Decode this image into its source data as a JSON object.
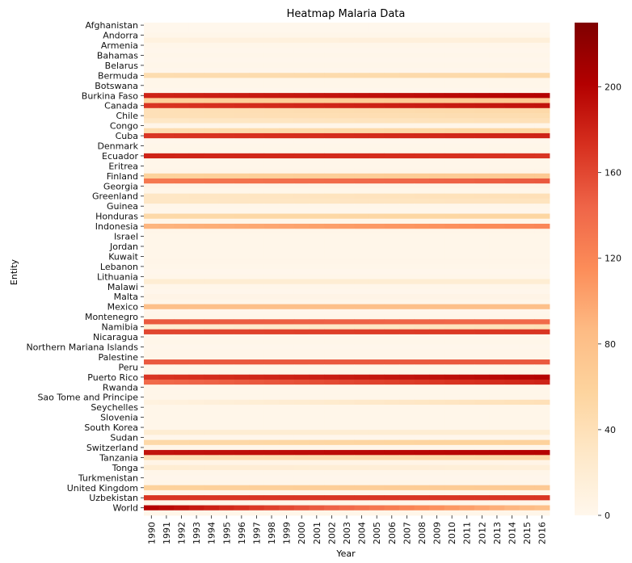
{
  "chart_data": {
    "type": "heatmap",
    "title": "Heatmap Malaria Data",
    "xlabel": "Year",
    "ylabel": "Entity",
    "x": [
      "1990",
      "1991",
      "1992",
      "1993",
      "1994",
      "1995",
      "1996",
      "1997",
      "1998",
      "1999",
      "2000",
      "2001",
      "2002",
      "2003",
      "2004",
      "2005",
      "2006",
      "2007",
      "2008",
      "2009",
      "2010",
      "2011",
      "2012",
      "2013",
      "2014",
      "2015",
      "2016"
    ],
    "y_tick_labels": [
      "Afghanistan",
      "Andorra",
      "Armenia",
      "Bahamas",
      "Belarus",
      "Bermuda",
      "Botswana",
      "Burkina Faso",
      "Canada",
      "Chile",
      "Congo",
      "Cuba",
      "Denmark",
      "Ecuador",
      "Eritrea",
      "Finland",
      "Georgia",
      "Greenland",
      "Guinea",
      "Honduras",
      "Indonesia",
      "Israel",
      "Jordan",
      "Kuwait",
      "Lebanon",
      "Lithuania",
      "Malawi",
      "Malta",
      "Mexico",
      "Montenegro",
      "Namibia",
      "Nicaragua",
      "Northern Mariana Islands",
      "Palestine",
      "Peru",
      "Puerto Rico",
      "Rwanda",
      "Sao Tome and Principe",
      "Seychelles",
      "Slovenia",
      "South Korea",
      "Sudan",
      "Switzerland",
      "Tanzania",
      "Tonga",
      "Turkmenistan",
      "United Kingdom",
      "Uzbekistan",
      "World"
    ],
    "row_count": 98,
    "colorbar": {
      "ticks": [
        0,
        40,
        80,
        120,
        160,
        200
      ],
      "vmin": 0,
      "vmax": 230,
      "colormap": "OrRd"
    },
    "row_profiles": [
      [
        0,
        0
      ],
      [
        0,
        0
      ],
      [
        2,
        2
      ],
      [
        10,
        15
      ],
      [
        2,
        2
      ],
      [
        1,
        1
      ],
      [
        2,
        2
      ],
      [
        1,
        1
      ],
      [
        2,
        2
      ],
      [
        1,
        1
      ],
      [
        45,
        50
      ],
      [
        2,
        2
      ],
      [
        2,
        2
      ],
      [
        1,
        1
      ],
      [
        180,
        200
      ],
      [
        60,
        70
      ],
      [
        170,
        190
      ],
      [
        40,
        50
      ],
      [
        40,
        45
      ],
      [
        30,
        40
      ],
      [
        3,
        3
      ],
      [
        45,
        55
      ],
      [
        170,
        180
      ],
      [
        1,
        1
      ],
      [
        2,
        2
      ],
      [
        2,
        2
      ],
      [
        180,
        170
      ],
      [
        2,
        2
      ],
      [
        2,
        2
      ],
      [
        3,
        3
      ],
      [
        60,
        70
      ],
      [
        130,
        150
      ],
      [
        5,
        5
      ],
      [
        2,
        2
      ],
      [
        30,
        40
      ],
      [
        30,
        35
      ],
      [
        2,
        2
      ],
      [
        1,
        1
      ],
      [
        50,
        55
      ],
      [
        2,
        2
      ],
      [
        90,
        120
      ],
      [
        3,
        3
      ],
      [
        2,
        2
      ],
      [
        2,
        2
      ],
      [
        2,
        2
      ],
      [
        2,
        2
      ],
      [
        2,
        2
      ],
      [
        3,
        3
      ],
      [
        2,
        2
      ],
      [
        1,
        1
      ],
      [
        2,
        2
      ],
      [
        20,
        20
      ],
      [
        2,
        2
      ],
      [
        1,
        1
      ],
      [
        5,
        5
      ],
      [
        2,
        2
      ],
      [
        80,
        80
      ],
      [
        1,
        1
      ],
      [
        2,
        2
      ],
      [
        150,
        140
      ],
      [
        20,
        40
      ],
      [
        160,
        170
      ],
      [
        1,
        1
      ],
      [
        2,
        2
      ],
      [
        1,
        1
      ],
      [
        2,
        2
      ],
      [
        2,
        2
      ],
      [
        150,
        150
      ],
      [
        2,
        2
      ],
      [
        3,
        3
      ],
      [
        170,
        200
      ],
      [
        140,
        180
      ],
      [
        2,
        2
      ],
      [
        2,
        2
      ],
      [
        2,
        2
      ],
      [
        10,
        40
      ],
      [
        2,
        2
      ],
      [
        2,
        2
      ],
      [
        2,
        2
      ],
      [
        2,
        2
      ],
      [
        2,
        2
      ],
      [
        20,
        20
      ],
      [
        1,
        1
      ],
      [
        50,
        60
      ],
      [
        2,
        2
      ],
      [
        190,
        200
      ],
      [
        40,
        50
      ],
      [
        5,
        5
      ],
      [
        20,
        15
      ],
      [
        2,
        2
      ],
      [
        1,
        1
      ],
      [
        2,
        2
      ],
      [
        60,
        70
      ],
      [
        2,
        2
      ],
      [
        170,
        170
      ],
      [
        2,
        2
      ],
      [
        200,
        80
      ],
      [
        2,
        2
      ]
    ],
    "row_order_note": ""
  }
}
